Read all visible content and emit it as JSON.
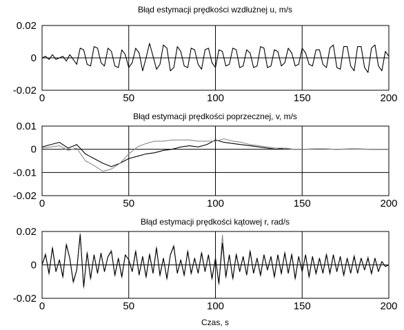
{
  "chart_data": [
    {
      "type": "line",
      "title": "Błąd estymacji prędkości wzdłużnej u, m/s",
      "xlabel": "",
      "xlim": [
        0,
        200
      ],
      "ylim": [
        -0.02,
        0.02
      ],
      "xticks": [
        0,
        50,
        100,
        150,
        200
      ],
      "xtick_labels": [
        "0",
        "50",
        "100",
        "150",
        "200"
      ],
      "yticks": [
        -0.02,
        0,
        0.02
      ],
      "ytick_labels": [
        "-0.02",
        "0",
        "0.02"
      ],
      "grid": true,
      "series": [
        {
          "color": "#000000",
          "x": [
            0,
            2,
            4,
            6,
            8,
            10,
            12,
            14,
            16,
            18,
            20,
            22,
            24,
            26,
            28,
            30,
            32,
            34,
            36,
            38,
            40,
            42,
            44,
            46,
            48,
            50,
            52,
            54,
            56,
            58,
            60,
            62,
            64,
            66,
            68,
            70,
            72,
            74,
            76,
            78,
            80,
            82,
            84,
            86,
            88,
            90,
            92,
            94,
            96,
            98,
            100,
            102,
            104,
            106,
            108,
            110,
            112,
            114,
            116,
            118,
            120,
            122,
            124,
            126,
            128,
            130,
            132,
            134,
            136,
            138,
            140,
            142,
            144,
            146,
            148,
            150,
            152,
            154,
            156,
            158,
            160,
            162,
            164,
            166,
            168,
            170,
            172,
            174,
            176,
            178,
            180,
            182,
            184,
            186,
            188,
            190,
            192,
            194,
            196,
            198,
            200
          ],
          "y": [
            0.0,
            0.001,
            -0.001,
            0.002,
            -0.001,
            0.0,
            0.001,
            -0.002,
            0.002,
            -0.001,
            -0.004,
            0.006,
            0.005,
            -0.004,
            -0.005,
            0.007,
            0.006,
            -0.003,
            -0.005,
            0.006,
            0.004,
            -0.005,
            -0.006,
            0.005,
            0.002,
            -0.006,
            -0.003,
            0.006,
            0.003,
            -0.008,
            0.0,
            0.009,
            0.001,
            -0.007,
            -0.004,
            0.008,
            0.006,
            -0.008,
            -0.006,
            0.007,
            0.004,
            -0.005,
            -0.006,
            0.006,
            0.005,
            -0.004,
            -0.007,
            0.005,
            0.006,
            -0.003,
            -0.006,
            0.005,
            0.004,
            -0.005,
            -0.004,
            0.006,
            0.005,
            -0.006,
            -0.005,
            0.005,
            0.003,
            -0.006,
            -0.005,
            0.007,
            0.006,
            -0.006,
            -0.005,
            0.005,
            0.004,
            -0.005,
            -0.003,
            0.006,
            0.003,
            -0.005,
            -0.004,
            0.006,
            0.003,
            -0.004,
            -0.005,
            0.005,
            0.005,
            -0.004,
            -0.006,
            0.006,
            0.008,
            -0.006,
            -0.007,
            0.007,
            0.007,
            -0.005,
            -0.008,
            0.007,
            0.007,
            -0.006,
            -0.009,
            0.006,
            0.008,
            -0.005,
            -0.008,
            0.004,
            0.001
          ]
        }
      ]
    },
    {
      "type": "line",
      "title": "Błąd estymacji prędkości poprzecznej, v, m/s",
      "xlabel": "",
      "xlim": [
        0,
        200
      ],
      "ylim": [
        -0.02,
        0.01
      ],
      "xticks": [
        0,
        50,
        100,
        150,
        200
      ],
      "xtick_labels": [
        "0",
        "50",
        "100",
        "150",
        "200"
      ],
      "yticks": [
        -0.02,
        -0.01,
        0,
        0.01
      ],
      "ytick_labels": [
        "-0.02",
        "-0.01",
        "0",
        "0.01"
      ],
      "grid": true,
      "series": [
        {
          "color": "#000000",
          "x": [
            0,
            5,
            10,
            15,
            20,
            25,
            30,
            35,
            40,
            45,
            50,
            55,
            60,
            65,
            70,
            75,
            80,
            85,
            90,
            95,
            100,
            105,
            110,
            115,
            120,
            125,
            130,
            135,
            140,
            145,
            150,
            160,
            170,
            180,
            190,
            200
          ],
          "y": [
            0.001,
            0.002,
            0.003,
            0.0005,
            0.002,
            -0.002,
            -0.004,
            -0.006,
            -0.0075,
            -0.006,
            -0.004,
            -0.003,
            -0.002,
            -0.0015,
            -0.0005,
            0.0,
            0.001,
            0.0015,
            0.001,
            0.002,
            0.004,
            0.003,
            0.0025,
            0.002,
            0.0015,
            0.001,
            0.0005,
            0.0,
            0.0005,
            0.0,
            0.0,
            0.0002,
            0.0,
            0.0002,
            0.0,
            0.0
          ]
        },
        {
          "color": "#888888",
          "x": [
            0,
            5,
            10,
            15,
            20,
            25,
            30,
            35,
            40,
            45,
            50,
            55,
            60,
            65,
            70,
            75,
            80,
            85,
            90,
            95,
            100,
            105,
            110,
            115,
            120,
            125,
            130,
            135,
            140,
            145,
            150,
            160,
            170,
            180,
            190,
            200
          ],
          "y": [
            0.0005,
            0.001,
            0.0015,
            -0.0005,
            0.0005,
            -0.005,
            -0.007,
            -0.0095,
            -0.0085,
            -0.006,
            -0.002,
            0.001,
            0.0025,
            0.0035,
            0.0035,
            0.004,
            0.004,
            0.004,
            0.0035,
            0.0035,
            0.0035,
            0.0045,
            0.0035,
            0.003,
            0.002,
            0.0015,
            0.001,
            0.0005,
            0.0005,
            0.0,
            0.0,
            0.0002,
            0.0,
            0.0001,
            0.0,
            0.0
          ]
        }
      ]
    },
    {
      "type": "line",
      "title": "Błąd estymacji prędkości kątowej r, rad/s",
      "xlabel": "Czas, s",
      "xlim": [
        0,
        200
      ],
      "ylim": [
        -0.02,
        0.02
      ],
      "xticks": [
        0,
        50,
        100,
        150,
        200
      ],
      "xtick_labels": [
        "0",
        "50",
        "100",
        "150",
        "200"
      ],
      "yticks": [
        -0.02,
        0,
        0.02
      ],
      "ytick_labels": [
        "-0.02",
        "0",
        "0.02"
      ],
      "grid": true,
      "series": [
        {
          "color": "#888888",
          "x": [
            0,
            2,
            4,
            6,
            8,
            10,
            12,
            14,
            16,
            18,
            20,
            22,
            24,
            26,
            28,
            30,
            32,
            34,
            36,
            38,
            40,
            42,
            44,
            46,
            48,
            50,
            52,
            54,
            56,
            58,
            60,
            62,
            64,
            66,
            68,
            70,
            72,
            74,
            76,
            78,
            80,
            82,
            84,
            86,
            88,
            90,
            92,
            94,
            96,
            98,
            100,
            102,
            104,
            106,
            108,
            110,
            112,
            114,
            116,
            118,
            120,
            122,
            124,
            126,
            128,
            130,
            132,
            134,
            136,
            138,
            140,
            142,
            144,
            146,
            148,
            150,
            152,
            154,
            156,
            158,
            160,
            162,
            164,
            166,
            168,
            170,
            172,
            174,
            176,
            178,
            180,
            182,
            184,
            186,
            188,
            190,
            192,
            194,
            196,
            198,
            200
          ],
          "y": [
            0.0,
            0.007,
            -0.006,
            0.011,
            -0.004,
            0.003,
            -0.008,
            0.013,
            0.004,
            -0.011,
            -0.003,
            0.019,
            -0.014,
            0.008,
            -0.009,
            0.006,
            -0.005,
            0.007,
            -0.004,
            0.005,
            0.009,
            -0.007,
            0.004,
            -0.008,
            0.006,
            0.003,
            -0.004,
            0.009,
            -0.006,
            0.005,
            -0.008,
            0.007,
            -0.005,
            0.011,
            -0.007,
            0.004,
            -0.009,
            0.006,
            0.012,
            -0.005,
            0.003,
            -0.007,
            0.009,
            -0.006,
            0.004,
            -0.005,
            0.008,
            -0.004,
            0.006,
            -0.009,
            0.004,
            -0.012,
            0.018,
            -0.008,
            0.006,
            -0.009,
            0.007,
            -0.004,
            0.005,
            -0.006,
            0.009,
            -0.005,
            0.004,
            -0.007,
            0.006,
            -0.003,
            0.005,
            -0.008,
            0.006,
            -0.006,
            0.008,
            -0.005,
            0.007,
            -0.009,
            0.005,
            -0.004,
            0.006,
            -0.008,
            0.005,
            -0.006,
            0.004,
            -0.005,
            0.007,
            -0.006,
            0.006,
            -0.004,
            0.005,
            -0.007,
            0.004,
            -0.005,
            0.006,
            -0.005,
            0.004,
            -0.003,
            0.005,
            -0.006,
            0.004,
            -0.004,
            0.002,
            -0.001,
            0.0
          ]
        },
        {
          "color": "#000000",
          "x": [
            0,
            2,
            4,
            6,
            8,
            10,
            12,
            14,
            16,
            18,
            20,
            22,
            24,
            26,
            28,
            30,
            32,
            34,
            36,
            38,
            40,
            42,
            44,
            46,
            48,
            50,
            52,
            54,
            56,
            58,
            60,
            62,
            64,
            66,
            68,
            70,
            72,
            74,
            76,
            78,
            80,
            82,
            84,
            86,
            88,
            90,
            92,
            94,
            96,
            98,
            100,
            102,
            104,
            106,
            108,
            110,
            112,
            114,
            116,
            118,
            120,
            122,
            124,
            126,
            128,
            130,
            132,
            134,
            136,
            138,
            140,
            142,
            144,
            146,
            148,
            150,
            152,
            154,
            156,
            158,
            160,
            162,
            164,
            166,
            168,
            170,
            172,
            174,
            176,
            178,
            180,
            182,
            184,
            186,
            188,
            190,
            192,
            194,
            196,
            198,
            200
          ],
          "y": [
            0.0,
            0.006,
            -0.005,
            0.01,
            -0.004,
            0.003,
            -0.007,
            0.012,
            0.004,
            -0.01,
            -0.003,
            0.018,
            -0.013,
            0.007,
            -0.008,
            0.006,
            -0.005,
            0.007,
            -0.004,
            0.005,
            0.008,
            -0.006,
            0.004,
            -0.007,
            0.006,
            0.003,
            -0.004,
            0.008,
            -0.006,
            0.005,
            -0.007,
            0.006,
            -0.005,
            0.01,
            -0.006,
            0.004,
            -0.008,
            0.006,
            0.011,
            -0.005,
            0.003,
            -0.006,
            0.008,
            -0.005,
            0.004,
            -0.005,
            0.007,
            -0.004,
            0.006,
            -0.008,
            0.004,
            -0.011,
            0.013,
            -0.007,
            0.006,
            -0.008,
            0.006,
            -0.004,
            0.005,
            -0.006,
            0.008,
            -0.005,
            0.004,
            -0.006,
            0.006,
            -0.003,
            0.005,
            -0.007,
            0.006,
            -0.005,
            0.007,
            -0.005,
            0.006,
            -0.008,
            0.005,
            -0.004,
            0.006,
            -0.007,
            0.005,
            -0.005,
            0.004,
            -0.005,
            0.006,
            -0.005,
            0.006,
            -0.004,
            0.005,
            -0.006,
            0.004,
            -0.005,
            0.005,
            -0.005,
            0.004,
            -0.003,
            0.004,
            -0.005,
            0.004,
            -0.004,
            0.002,
            -0.001,
            0.0
          ]
        }
      ]
    }
  ]
}
